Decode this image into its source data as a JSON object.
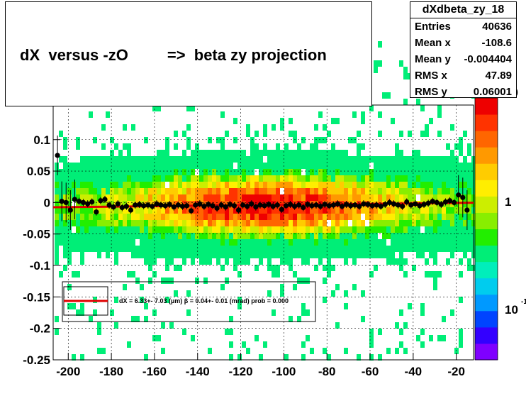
{
  "title": "dX  versus -zO         =>  beta zy projection",
  "stats": {
    "name": "dXdbeta_zy_18",
    "rows": [
      {
        "label": "Entries",
        "value": "40636"
      },
      {
        "label": "Mean x",
        "value": "-108.6"
      },
      {
        "label": "Mean y",
        "value": "-0.004404"
      },
      {
        "label": "RMS x",
        "value": "47.89"
      },
      {
        "label": "RMS y",
        "value": "0.06001"
      }
    ]
  },
  "legend": {
    "text": "dX =   6.33+- 7.03 (µm) β =   0.04+- 0.01 (mrad) prob = 0.000"
  },
  "colorbar": {
    "tick_labels": [
      "10",
      "1",
      "10"
    ],
    "exponent": "-1"
  },
  "chart_data": {
    "type": "heatmap",
    "xlim": [
      -207,
      -12
    ],
    "ylim": [
      -0.25,
      0.155
    ],
    "x_ticks": [
      -200,
      -180,
      -160,
      -140,
      -120,
      -100,
      -80,
      -60,
      -40,
      -20
    ],
    "y_ticks": [
      -0.25,
      -0.2,
      -0.15,
      -0.1,
      -0.05,
      0,
      0.05,
      0.1
    ],
    "x_tick_labels": [
      "-200",
      "-180",
      "-160",
      "-140",
      "-120",
      "-100",
      "-80",
      "-60",
      "-40",
      "-20"
    ],
    "y_tick_labels": [
      "-0.25",
      "-0.2",
      "-0.15",
      "-0.1",
      "-0.05",
      "0",
      "0.05",
      "0.1"
    ],
    "grid": true,
    "profile_points": {
      "x": [
        -205,
        -203,
        -201,
        -199,
        -197,
        -195,
        -193,
        -191,
        -189,
        -187,
        -185,
        -183,
        -181,
        -179,
        -177,
        -175,
        -173,
        -171,
        -169,
        -167,
        -165,
        -163,
        -161,
        -159,
        -157,
        -155,
        -153,
        -151,
        -149,
        -147,
        -145,
        -143,
        -141,
        -139,
        -137,
        -135,
        -133,
        -131,
        -129,
        -127,
        -125,
        -123,
        -121,
        -119,
        -117,
        -115,
        -113,
        -111,
        -109,
        -107,
        -105,
        -103,
        -101,
        -99,
        -97,
        -95,
        -93,
        -91,
        -89,
        -87,
        -85,
        -83,
        -81,
        -79,
        -77,
        -75,
        -73,
        -71,
        -69,
        -67,
        -65,
        -63,
        -61,
        -59,
        -57,
        -55,
        -53,
        -51,
        -49,
        -47,
        -45,
        -43,
        -41,
        -39,
        -37,
        -35,
        -33,
        -31,
        -29,
        -27,
        -25,
        -23,
        -21,
        -19,
        -17,
        -15
      ],
      "y": [
        0.075,
        0.002,
        0.0,
        -0.012,
        0.005,
        0.002,
        0.0,
        -0.002,
        0.001,
        -0.015,
        0.003,
        0.005,
        -0.004,
        -0.007,
        -0.002,
        -0.008,
        -0.006,
        -0.012,
        -0.004,
        -0.003,
        -0.005,
        -0.004,
        -0.006,
        -0.002,
        -0.004,
        -0.005,
        -0.003,
        -0.007,
        -0.004,
        -0.006,
        -0.005,
        -0.013,
        -0.004,
        -0.002,
        -0.006,
        -0.003,
        -0.005,
        -0.009,
        -0.004,
        -0.007,
        -0.003,
        -0.005,
        -0.012,
        -0.004,
        -0.006,
        -0.002,
        -0.007,
        -0.004,
        -0.005,
        -0.003,
        -0.006,
        -0.004,
        -0.011,
        -0.005,
        -0.003,
        -0.006,
        -0.004,
        -0.008,
        -0.003,
        -0.005,
        -0.004,
        -0.006,
        -0.003,
        -0.005,
        -0.004,
        -0.002,
        -0.006,
        -0.003,
        -0.005,
        -0.004,
        -0.006,
        -0.002,
        -0.003,
        -0.005,
        -0.004,
        -0.006,
        -0.003,
        0.0,
        -0.002,
        -0.004,
        -0.006,
        0.001,
        -0.004,
        -0.002,
        -0.005,
        -0.003,
        -0.001,
        0.002,
        0.0,
        -0.003,
        0.001,
        0.003,
        0.0,
        0.012,
        0.008,
        -0.012
      ]
    },
    "fit_line": {
      "x": [
        -207,
        -12
      ],
      "y": [
        -0.0075,
        -0.0003
      ]
    }
  }
}
